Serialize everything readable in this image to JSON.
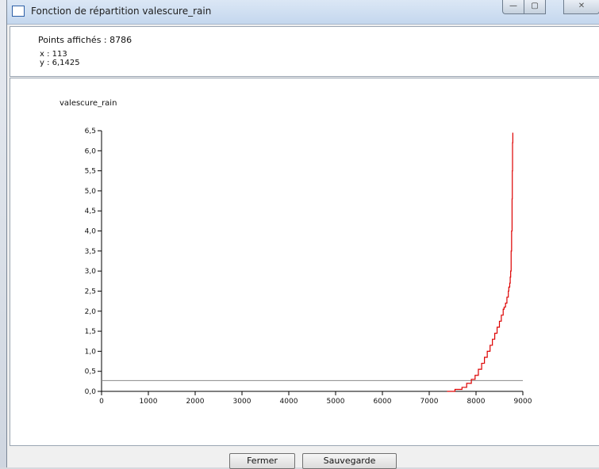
{
  "window": {
    "title": "Fonction de répartition valescure_rain",
    "controls": {
      "minimize": "—",
      "maximize": "▢",
      "close": "✕"
    }
  },
  "info": {
    "points_label": "Points affichés : 8786",
    "x_label": "x : 113",
    "y_label": "y : 6,1425"
  },
  "buttons": {
    "close_label": "Fermer",
    "save_label": "Sauvegarde"
  },
  "colors": {
    "series": "#dd0000",
    "reference_line": "#888888",
    "axis": "#000000"
  },
  "chart_data": {
    "type": "line",
    "ylabel": "valescure_rain",
    "xlim": [
      0,
      9000
    ],
    "ylim": [
      0,
      6.5
    ],
    "x_ticks": [
      0,
      1000,
      2000,
      3000,
      4000,
      5000,
      6000,
      7000,
      8000,
      9000
    ],
    "x_tick_labels": [
      "0",
      "1000",
      "2000",
      "3000",
      "4000",
      "5000",
      "6000",
      "7000",
      "8000",
      "9000"
    ],
    "y_ticks": [
      0,
      0.5,
      1,
      1.5,
      2,
      2.5,
      3,
      3.5,
      4,
      4.5,
      5,
      5.5,
      6,
      6.5
    ],
    "y_tick_labels": [
      "0,0",
      "0,5",
      "1,0",
      "1,5",
      "2,0",
      "2,5",
      "3,0",
      "3,5",
      "4,0",
      "4,5",
      "5,0",
      "5,5",
      "6,0",
      "6,5"
    ],
    "reference_line_y": 0.27,
    "series": [
      {
        "x": [
          7380,
          7550,
          7700,
          7800,
          7900,
          7980,
          8050,
          8120,
          8180,
          8240,
          8300,
          8350,
          8400,
          8450,
          8500,
          8540,
          8580,
          8600,
          8630,
          8660,
          8690,
          8700,
          8720,
          8730,
          8740,
          8750,
          8760,
          8770,
          8775,
          8780,
          8786
        ],
        "y": [
          0.0,
          0.05,
          0.1,
          0.2,
          0.3,
          0.4,
          0.55,
          0.7,
          0.85,
          1.0,
          1.15,
          1.3,
          1.45,
          1.6,
          1.75,
          1.9,
          2.05,
          2.1,
          2.2,
          2.35,
          2.5,
          2.6,
          2.7,
          2.85,
          3.0,
          3.5,
          4.0,
          4.8,
          5.5,
          6.2,
          6.45
        ]
      }
    ]
  }
}
